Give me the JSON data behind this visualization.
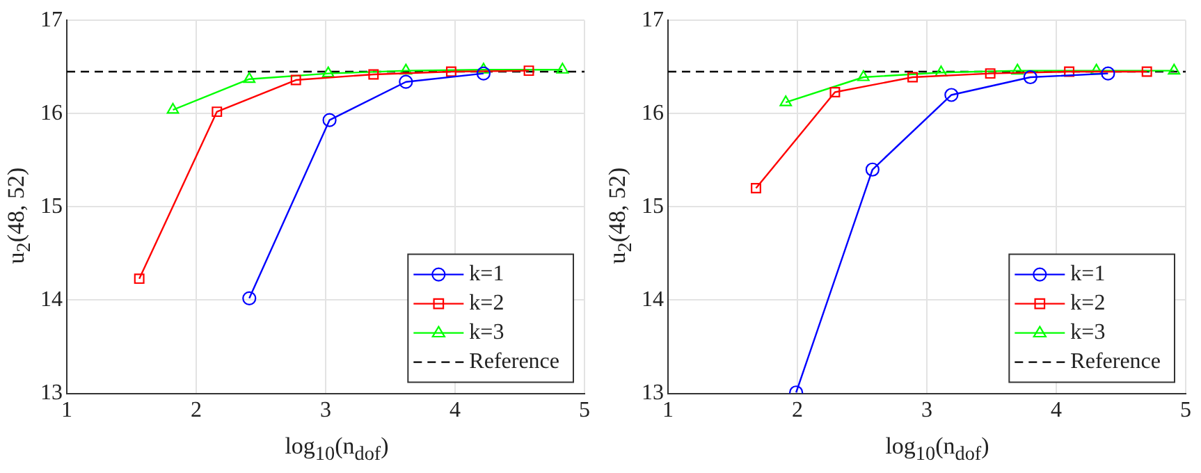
{
  "chart_data": [
    {
      "type": "line",
      "xlabel": "log$_{10}$(n$_{dof}$)",
      "ylabel": "u$_{2}$(48, 52)",
      "xlim": [
        1,
        5
      ],
      "xticks": [
        1,
        2,
        3,
        4,
        5
      ],
      "ylim": [
        13,
        17
      ],
      "yticks": [
        13,
        14,
        15,
        16,
        17
      ],
      "grid": true,
      "legend": "bottom right",
      "series": [
        {
          "name": "k=1",
          "color": "#0000ff",
          "marker": "circle",
          "x": [
            2.41,
            3.03,
            3.62,
            4.22
          ],
          "values": [
            14.02,
            15.93,
            16.34,
            16.43
          ]
        },
        {
          "name": "k=2",
          "color": "#ff0000",
          "marker": "square",
          "x": [
            1.56,
            2.16,
            2.77,
            3.37,
            3.97,
            4.57
          ],
          "values": [
            14.23,
            16.02,
            16.36,
            16.42,
            16.45,
            16.46
          ]
        },
        {
          "name": "k=3",
          "color": "#00ff00",
          "marker": "triangle",
          "x": [
            1.82,
            2.41,
            3.02,
            3.62,
            4.22,
            4.83
          ],
          "values": [
            16.04,
            16.37,
            16.43,
            16.46,
            16.47,
            16.47
          ]
        }
      ],
      "ref_lines": [
        {
          "axis": "y",
          "value": 16.45,
          "label": "Reference",
          "color": "#000000",
          "line_style": "dashed"
        }
      ]
    },
    {
      "type": "line",
      "xlabel": "log$_{10}$(n$_{dof}$)",
      "ylabel": "u$_{2}$(48, 52)",
      "xlim": [
        1,
        5
      ],
      "xticks": [
        1,
        2,
        3,
        4,
        5
      ],
      "ylim": [
        13,
        17
      ],
      "yticks": [
        13,
        14,
        15,
        16,
        17
      ],
      "grid": true,
      "legend": "bottom right",
      "series": [
        {
          "name": "k=1",
          "color": "#0000ff",
          "marker": "circle",
          "x": [
            1.99,
            2.58,
            3.19,
            3.8,
            4.4
          ],
          "values": [
            13.01,
            15.4,
            16.2,
            16.39,
            16.43
          ]
        },
        {
          "name": "k=2",
          "color": "#ff0000",
          "marker": "square",
          "x": [
            1.68,
            2.29,
            2.89,
            3.49,
            4.1,
            4.7
          ],
          "values": [
            15.2,
            16.23,
            16.39,
            16.43,
            16.45,
            16.45
          ]
        },
        {
          "name": "k=3",
          "color": "#00ff00",
          "marker": "triangle",
          "x": [
            1.91,
            2.51,
            3.11,
            3.7,
            4.31,
            4.91
          ],
          "values": [
            16.12,
            16.39,
            16.44,
            16.46,
            16.46,
            16.46
          ]
        }
      ],
      "ref_lines": [
        {
          "axis": "y",
          "value": 16.45,
          "label": "Reference",
          "color": "#000000",
          "line_style": "dashed"
        }
      ]
    }
  ]
}
